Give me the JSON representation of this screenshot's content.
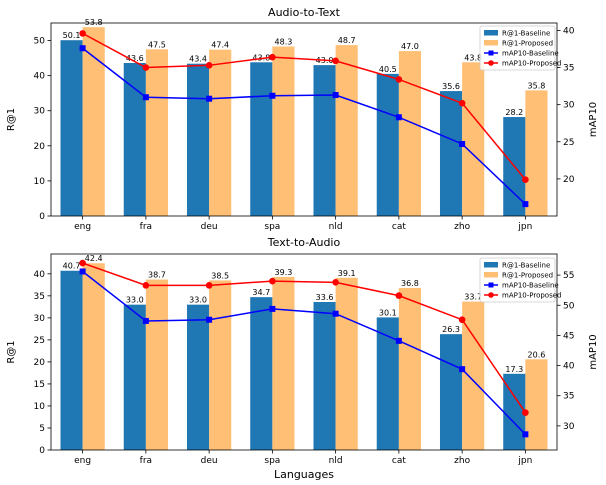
{
  "chart_data": [
    {
      "type": "bar",
      "title": "Audio-to-Text",
      "xlabel": "",
      "ylabel": "R@1",
      "ylabel_right": "mAP10",
      "categories": [
        "eng",
        "fra",
        "deu",
        "spa",
        "nld",
        "cat",
        "zho",
        "jpn"
      ],
      "ylim": [
        0,
        55
      ],
      "yticks": [
        0,
        10,
        20,
        30,
        40,
        50
      ],
      "ylim_right": [
        15,
        41
      ],
      "yticks_right": [
        20,
        25,
        30,
        35,
        40
      ],
      "series": [
        {
          "name": "R@1-Baseline",
          "kind": "bar",
          "axis": "left",
          "color": "#1f77b4",
          "values": [
            50.1,
            43.6,
            43.4,
            43.8,
            43.0,
            40.5,
            35.6,
            28.2
          ],
          "labels": [
            "50.1",
            "43.6",
            "43.4",
            "43.8",
            "43.0",
            "40.5",
            "35.6",
            "28.2"
          ]
        },
        {
          "name": "R@1-Proposed",
          "kind": "bar",
          "axis": "left",
          "color": "#ffbf75",
          "values": [
            53.8,
            47.5,
            47.4,
            48.3,
            48.7,
            47.0,
            43.8,
            35.8
          ],
          "labels": [
            "53.8",
            "47.5",
            "47.4",
            "48.3",
            "48.7",
            "47.0",
            "43.8",
            "35.8"
          ]
        },
        {
          "name": "mAP10-Baseline",
          "kind": "line",
          "marker": "square",
          "axis": "right",
          "color": "#0000ff",
          "values": [
            37.6,
            31.0,
            30.8,
            31.2,
            31.3,
            28.3,
            24.7,
            16.6
          ]
        },
        {
          "name": "mAP10-Proposed",
          "kind": "line",
          "marker": "circle",
          "axis": "right",
          "color": "#ff0000",
          "values": [
            39.6,
            35.0,
            35.3,
            36.4,
            35.9,
            33.4,
            30.2,
            19.9
          ]
        }
      ],
      "legend": "top-right"
    },
    {
      "type": "bar",
      "title": "Text-to-Audio",
      "xlabel": "Languages",
      "ylabel": "R@1",
      "ylabel_right": "mAP10",
      "categories": [
        "eng",
        "fra",
        "deu",
        "spa",
        "nld",
        "cat",
        "zho",
        "jpn"
      ],
      "ylim": [
        0,
        44.5
      ],
      "yticks": [
        0,
        5,
        10,
        15,
        20,
        25,
        30,
        35,
        40
      ],
      "ylim_right": [
        26,
        58.5
      ],
      "yticks_right": [
        30,
        35,
        40,
        45,
        50,
        55
      ],
      "series": [
        {
          "name": "R@1-Baseline",
          "kind": "bar",
          "axis": "left",
          "color": "#1f77b4",
          "values": [
            40.7,
            33.0,
            33.0,
            34.7,
            33.6,
            30.1,
            26.3,
            17.3
          ],
          "labels": [
            "40.7",
            "33.0",
            "33.0",
            "34.7",
            "33.6",
            "30.1",
            "26.3",
            "17.3"
          ]
        },
        {
          "name": "R@1-Proposed",
          "kind": "bar",
          "axis": "left",
          "color": "#ffbf75",
          "values": [
            42.4,
            38.7,
            38.5,
            39.3,
            39.1,
            36.8,
            33.7,
            20.6
          ],
          "labels": [
            "42.4",
            "38.7",
            "38.5",
            "39.3",
            "39.1",
            "36.8",
            "33.7",
            "20.6"
          ]
        },
        {
          "name": "mAP10-Baseline",
          "kind": "line",
          "marker": "square",
          "axis": "right",
          "color": "#0000ff",
          "values": [
            55.6,
            47.4,
            47.6,
            49.4,
            48.6,
            44.1,
            39.4,
            28.6
          ]
        },
        {
          "name": "mAP10-Proposed",
          "kind": "line",
          "marker": "circle",
          "axis": "right",
          "color": "#ff0000",
          "values": [
            57.0,
            53.3,
            53.3,
            54.0,
            53.8,
            51.6,
            47.6,
            32.2
          ]
        }
      ],
      "legend": "top-right"
    }
  ]
}
